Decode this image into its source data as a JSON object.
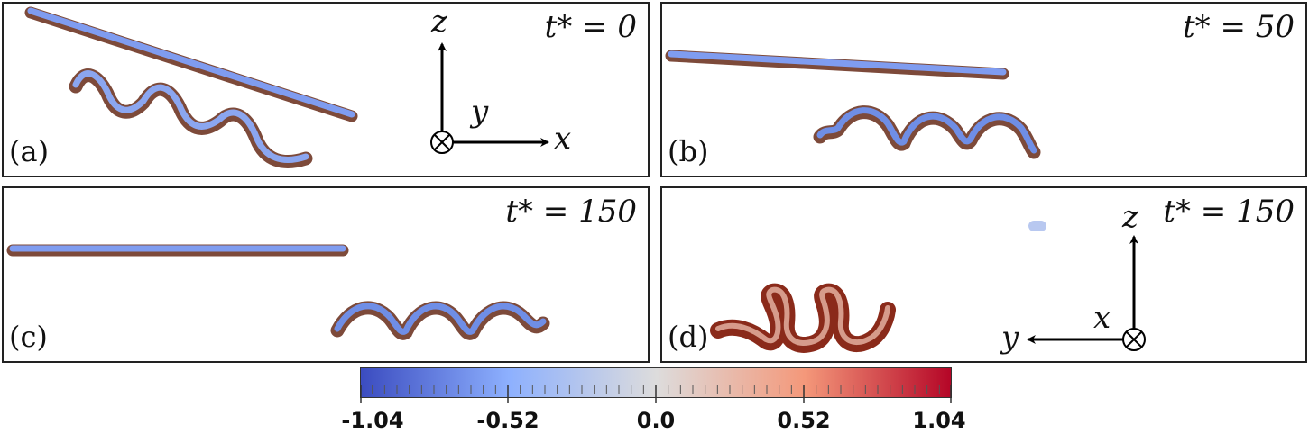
{
  "panels": {
    "a": {
      "label": "(a)",
      "time": "t* = 0"
    },
    "b": {
      "label": "(b)",
      "time": "t* = 50"
    },
    "c": {
      "label": "(c)",
      "time": "t* = 150"
    },
    "d": {
      "label": "(d)",
      "time": "t* = 150"
    }
  },
  "axes_a": {
    "vertical": "z",
    "horizontal": "x",
    "out_of_plane": "y"
  },
  "axes_d": {
    "vertical": "z",
    "horizontal": "y",
    "out_of_plane": "x"
  },
  "colorbar": {
    "min": -1.04,
    "max": 1.04,
    "tick_labels": [
      "-1.04",
      "-0.52",
      "0.0",
      "0.52",
      "1.04"
    ],
    "tick_values": [
      -1.04,
      -0.52,
      0.0,
      0.52,
      1.04
    ],
    "colors": [
      "#3b4cc0",
      "#8db0fe",
      "#dddcdc",
      "#f4987a",
      "#b40426"
    ]
  }
}
